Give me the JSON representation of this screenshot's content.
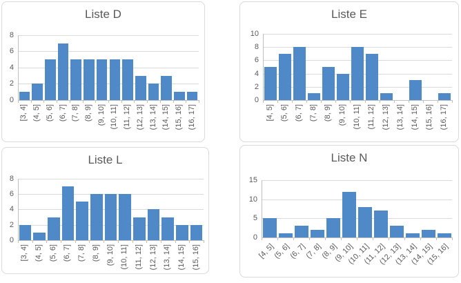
{
  "styles": {
    "bar_color": "#5089C8",
    "grid_color": "#d9d9d9",
    "axis_color": "#bfbfbf",
    "text_color": "#595959",
    "panel_border_color": "#d9d9d9",
    "background": "#ffffff"
  },
  "chart_data": [
    {
      "type": "bar",
      "chart_style": "histogram",
      "title": "Liste D",
      "categories": [
        "[3, 4]",
        "(4, 5]",
        "(5, 6]",
        "(6, 7]",
        "(7, 8]",
        "(8, 9]",
        "(9, 10]",
        "(10, 11]",
        "(11, 12]",
        "(12, 13]",
        "(13, 14]",
        "(14, 15]",
        "(15, 16]",
        "(16, 17]"
      ],
      "values": [
        1,
        2,
        5,
        7,
        5,
        5,
        5,
        5,
        5,
        3,
        2,
        3,
        1,
        1
      ],
      "xlabel": "",
      "ylabel": "",
      "ylim": [
        0,
        8
      ],
      "yticks": [
        0,
        2,
        4,
        6,
        8
      ],
      "grid": true,
      "legend": "none",
      "x_tick_rotation": 90
    },
    {
      "type": "bar",
      "chart_style": "histogram",
      "title": "Liste E",
      "categories": [
        "[4, 5]",
        "(5, 6]",
        "(6, 7]",
        "(7, 8]",
        "(8, 9]",
        "(9, 10]",
        "(10, 11]",
        "(11, 12]",
        "(12, 13]",
        "(13, 14]",
        "(14, 15]",
        "(15, 16]",
        "(16, 17]"
      ],
      "values": [
        5,
        7,
        8,
        1,
        5,
        4,
        8,
        7,
        1,
        0,
        3,
        0,
        1
      ],
      "xlabel": "",
      "ylabel": "",
      "ylim": [
        0,
        10
      ],
      "yticks": [
        0,
        2,
        4,
        6,
        8,
        10
      ],
      "grid": true,
      "legend": "none",
      "x_tick_rotation": 90
    },
    {
      "type": "bar",
      "chart_style": "histogram",
      "title": "Liste L",
      "categories": [
        "[3, 4]",
        "(4, 5]",
        "(5, 6]",
        "(6, 7]",
        "(7, 8]",
        "(8, 9]",
        "(9, 10]",
        "(10, 11]",
        "(11, 12]",
        "(12, 13]",
        "(13, 14]",
        "(14, 15]",
        "(15, 16]"
      ],
      "values": [
        2,
        1,
        3,
        7,
        5,
        6,
        6,
        6,
        3,
        4,
        3,
        2,
        2
      ],
      "xlabel": "",
      "ylabel": "",
      "ylim": [
        0,
        8
      ],
      "yticks": [
        0,
        2,
        4,
        6,
        8
      ],
      "grid": true,
      "legend": "none",
      "x_tick_rotation": 90
    },
    {
      "type": "bar",
      "chart_style": "histogram",
      "title": "Liste N",
      "categories": [
        "[4, 5]",
        "(5, 6]",
        "(6, 7]",
        "(7, 8]",
        "(8, 9]",
        "(9, 10]",
        "(10, 11]",
        "(11, 12]",
        "(12, 13]",
        "(13, 14]",
        "(14, 15]",
        "(15, 16]"
      ],
      "values": [
        5,
        1,
        3,
        2,
        5,
        12,
        8,
        7,
        3,
        1,
        2,
        1
      ],
      "xlabel": "",
      "ylabel": "",
      "ylim": [
        0,
        15
      ],
      "yticks": [
        0,
        5,
        10,
        15
      ],
      "grid": true,
      "legend": "none",
      "x_tick_rotation": 45
    }
  ]
}
